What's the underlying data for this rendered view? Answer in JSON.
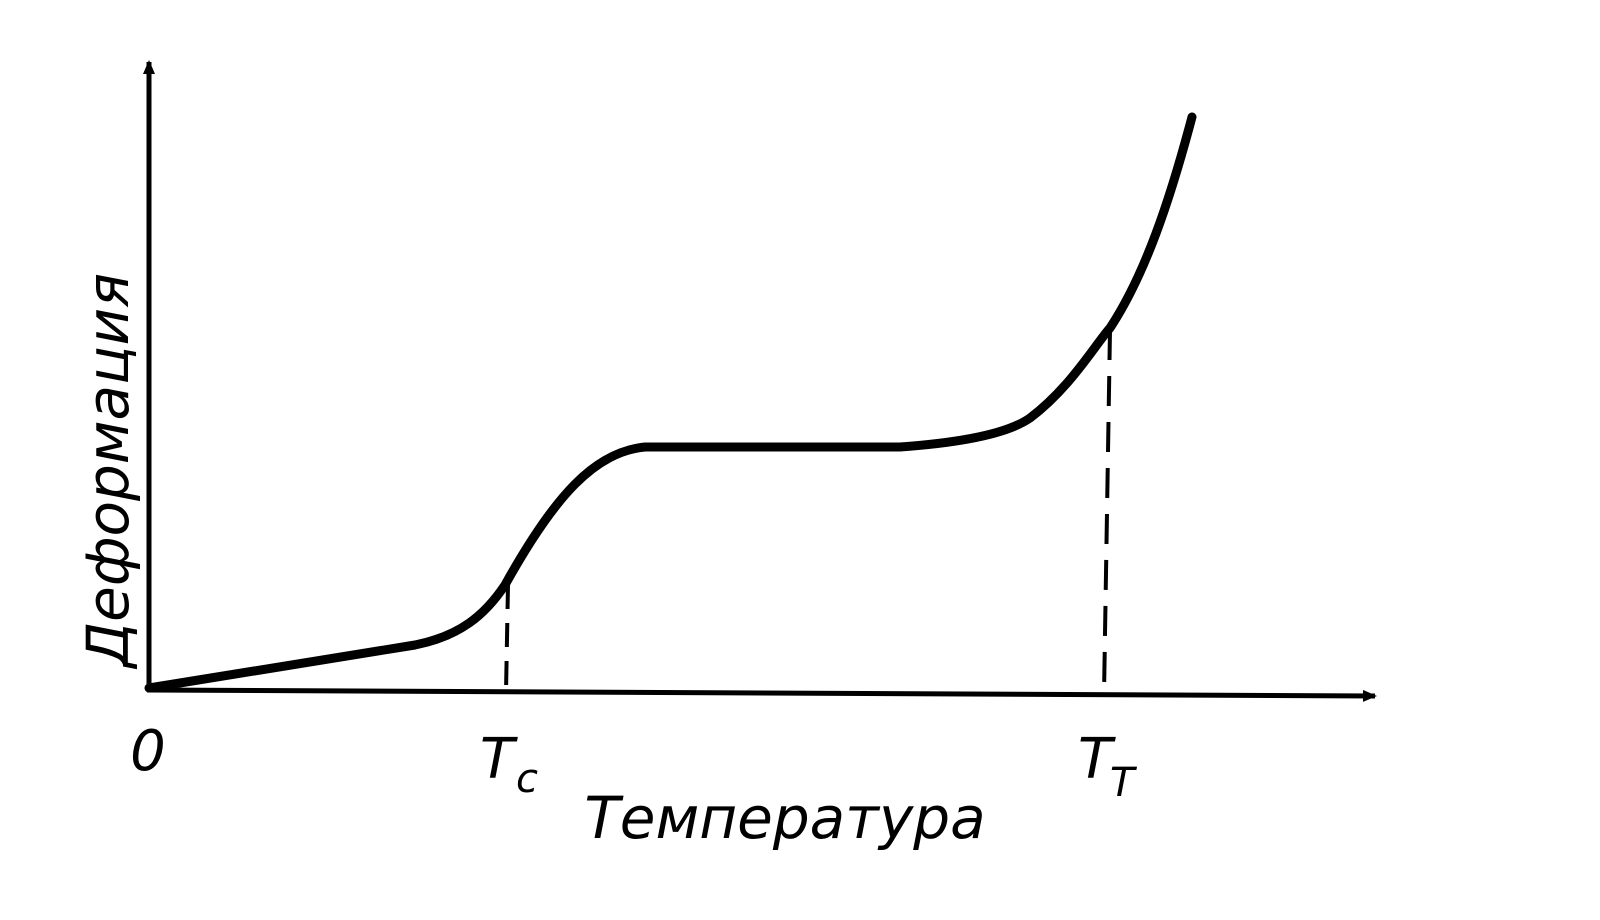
{
  "axes": {
    "y_label": "Деформация",
    "x_label": "Температура",
    "origin": "0"
  },
  "markers": [
    {
      "symbol": "T",
      "subscript": "c"
    },
    {
      "symbol": "T",
      "subscript": "T"
    }
  ]
}
